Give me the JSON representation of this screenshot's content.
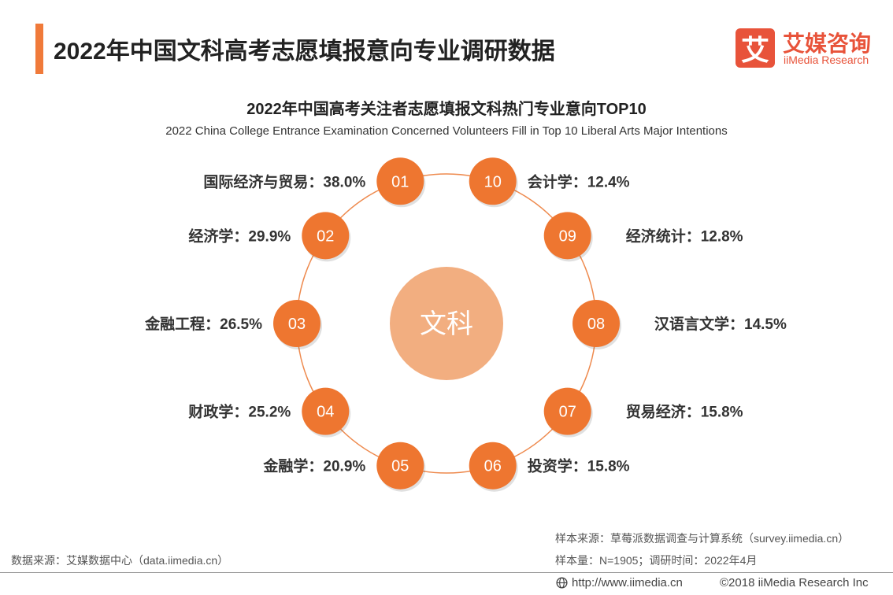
{
  "header": {
    "title": "2022年中国文科高考志愿填报意向专业调研数据"
  },
  "logo": {
    "mark": "艾",
    "name_cn": "艾媒咨询",
    "name_en": "iiMedia Research"
  },
  "chart_data": {
    "type": "radial-ranking",
    "title": "2022年中国高考关注者志愿填报文科热门专业意向TOP10",
    "subtitle": "2022 China College Entrance Examination Concerned Volunteers Fill in Top 10 Liberal Arts Major Intentions",
    "center_label": "文科",
    "unit": "%",
    "items": [
      {
        "rank": "01",
        "name": "国际经济与贸易",
        "value": 38.0
      },
      {
        "rank": "02",
        "name": "经济学",
        "value": 29.9
      },
      {
        "rank": "03",
        "name": "金融工程",
        "value": 26.5
      },
      {
        "rank": "04",
        "name": "财政学",
        "value": 25.2
      },
      {
        "rank": "05",
        "name": "金融学",
        "value": 20.9
      },
      {
        "rank": "06",
        "name": "投资学",
        "value": 15.8
      },
      {
        "rank": "07",
        "name": "贸易经济",
        "value": 15.8
      },
      {
        "rank": "08",
        "name": "汉语言文学",
        "value": 14.5
      },
      {
        "rank": "09",
        "name": "经济统计",
        "value": 12.8
      },
      {
        "rank": "10",
        "name": "会计学",
        "value": 12.4
      }
    ],
    "colors": {
      "node": "#ee7630",
      "ring": "#ee8a4e",
      "center": "#f2ae80"
    }
  },
  "footer": {
    "data_source": "数据来源：艾媒数据中心（data.iimedia.cn）",
    "sample_source": "样本来源：草莓派数据调查与计算系统（survey.iimedia.cn）",
    "sample_size": "样本量：N=1905；调研时间：2022年4月",
    "url": "http://www.iimedia.cn",
    "copyright": "©2018  iiMedia Research  Inc"
  }
}
